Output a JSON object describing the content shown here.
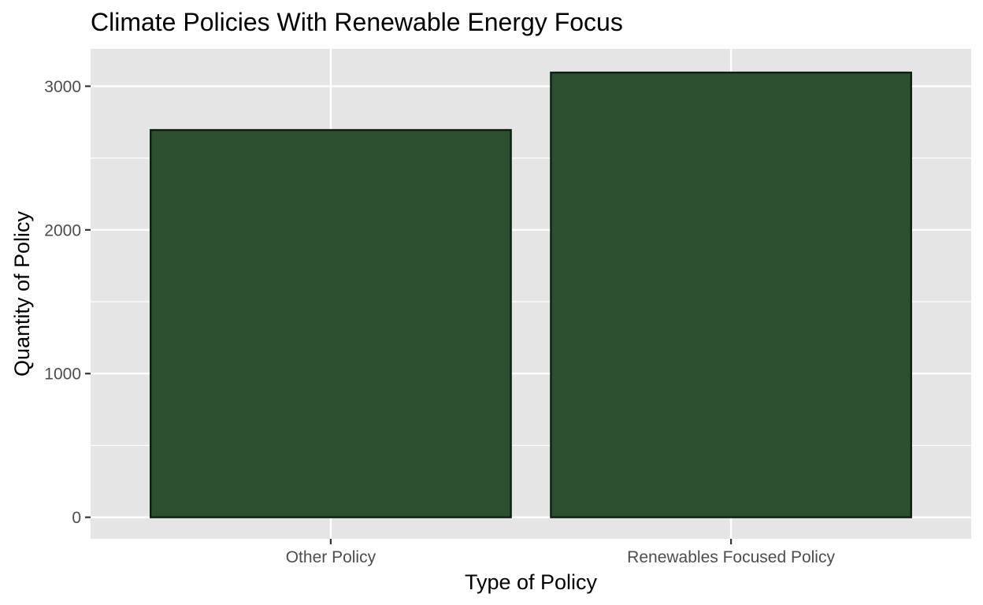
{
  "chart_data": {
    "type": "bar",
    "title": "Climate Policies With Renewable Energy Focus",
    "xlabel": "Type of Policy",
    "ylabel": "Quantity of Policy",
    "categories": [
      "Other Policy",
      "Renewables Focused Policy"
    ],
    "values": [
      2695,
      3095
    ],
    "ylim": [
      -150,
      3260
    ],
    "yticks": [
      0,
      1000,
      2000,
      3000
    ],
    "ytick_labels": [
      "0",
      "1000",
      "2000",
      "3000"
    ],
    "grid": true,
    "colors": {
      "bar_fill": "#2c4f2f",
      "bar_stroke": "#0c1f10",
      "panel_background": "#e5e5e5",
      "grid_line": "#ffffff"
    }
  }
}
